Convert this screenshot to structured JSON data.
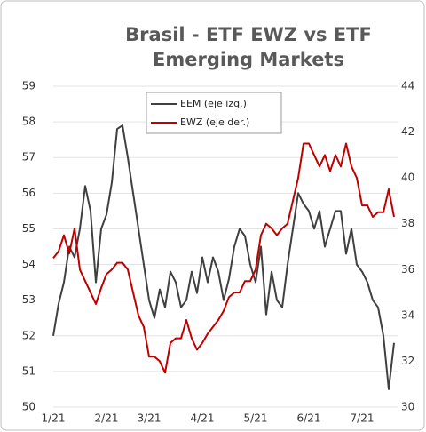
{
  "chart_data": {
    "type": "line",
    "title": [
      "Brasil  - ETF EWZ vs ETF",
      "Emerging Markets"
    ],
    "categories": [
      "1/21",
      null,
      null,
      null,
      null,
      null,
      null,
      null,
      null,
      null,
      "2/21",
      null,
      null,
      null,
      null,
      null,
      null,
      null,
      "3/21",
      null,
      null,
      null,
      null,
      null,
      null,
      null,
      null,
      null,
      "4/21",
      null,
      null,
      null,
      null,
      null,
      null,
      null,
      null,
      null,
      "5/21",
      null,
      null,
      null,
      null,
      null,
      null,
      null,
      null,
      null,
      "6/21",
      null,
      null,
      null,
      null,
      null,
      null,
      null,
      null,
      null,
      "7/21",
      null,
      null,
      null,
      null,
      null,
      null
    ],
    "series": [
      {
        "name": "EEM (eje izq.)",
        "color": "#404040",
        "axis": "y",
        "values": [
          52.0,
          52.9,
          53.5,
          54.5,
          54.2,
          55.0,
          56.2,
          55.5,
          53.5,
          55.0,
          55.4,
          56.3,
          57.8,
          57.9,
          57.0,
          56.0,
          55.0,
          54.0,
          53.0,
          52.5,
          53.3,
          52.8,
          53.8,
          53.5,
          52.8,
          53.0,
          53.8,
          53.2,
          54.2,
          53.5,
          54.2,
          53.8,
          53.0,
          53.6,
          54.5,
          55.0,
          54.8,
          54.0,
          53.5,
          54.5,
          52.6,
          53.8,
          53.0,
          52.8,
          54.0,
          55.0,
          56.0,
          55.7,
          55.5,
          55.0,
          55.5,
          54.5,
          55.0,
          55.5,
          55.5,
          54.3,
          55.0,
          54.0,
          53.8,
          53.5,
          53.0,
          52.8,
          52.0,
          50.5,
          51.8
        ]
      },
      {
        "name": "EWZ (eje der.)",
        "color": "#c00000",
        "axis": "y2",
        "values": [
          36.5,
          36.8,
          37.5,
          36.7,
          37.8,
          36.0,
          35.5,
          35.0,
          34.5,
          35.2,
          35.8,
          36.0,
          36.3,
          36.3,
          36.0,
          35.0,
          34.0,
          33.5,
          32.2,
          32.2,
          32.0,
          31.5,
          32.8,
          33.0,
          33.0,
          33.8,
          33.0,
          32.5,
          32.8,
          33.2,
          33.5,
          33.8,
          34.2,
          34.8,
          35.0,
          35.0,
          35.5,
          35.5,
          36.0,
          37.5,
          38.0,
          37.8,
          37.5,
          37.8,
          38.0,
          39.0,
          40.0,
          41.5,
          41.5,
          41.0,
          40.5,
          41.0,
          40.3,
          41.0,
          40.5,
          41.5,
          40.5,
          40.0,
          38.8,
          38.8,
          38.3,
          38.5,
          38.5,
          39.5,
          38.3
        ]
      }
    ],
    "ylim": [
      50,
      59
    ],
    "yticks": [
      50,
      51,
      52,
      53,
      54,
      55,
      56,
      57,
      58,
      59
    ],
    "y2lim": [
      30,
      44
    ],
    "y2ticks": [
      30,
      32,
      34,
      36,
      38,
      40,
      42,
      44
    ],
    "grid": true,
    "legend": "top"
  }
}
